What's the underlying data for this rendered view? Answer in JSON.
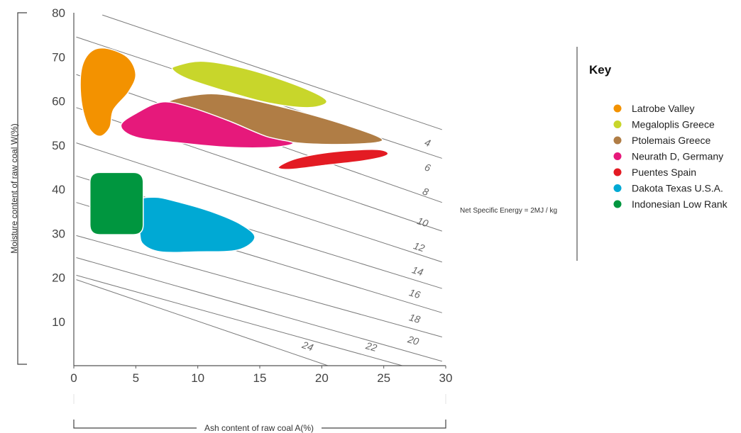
{
  "chart_data": {
    "type": "area",
    "xlabel": "Ash content of raw coal A(%)",
    "ylabel": "Moisture content of raw coal W(%)",
    "xlim": [
      0,
      30
    ],
    "ylim": [
      0,
      80
    ],
    "xticks": [
      0,
      5,
      10,
      15,
      20,
      25,
      30
    ],
    "yticks": [
      10,
      20,
      30,
      40,
      50,
      60,
      70,
      80
    ],
    "grid": false,
    "legend_title": "Key",
    "legend_position": "right",
    "annotation": "Net Specific Energy = 2MJ / kg",
    "isolines": [
      {
        "label": "4",
        "p1": [
          2.3,
          79.5
        ],
        "p2": [
          29.7,
          53.5
        ]
      },
      {
        "label": "6",
        "p1": [
          0.2,
          74.5
        ],
        "p2": [
          29.7,
          47.0
        ]
      },
      {
        "label": "8",
        "p1": [
          0.2,
          66.0
        ],
        "p2": [
          29.7,
          37.0
        ]
      },
      {
        "label": "10",
        "p1": [
          0.2,
          58.5
        ],
        "p2": [
          29.7,
          30.5
        ]
      },
      {
        "label": "12",
        "p1": [
          0.2,
          50.5
        ],
        "p2": [
          29.7,
          23.5
        ]
      },
      {
        "label": "14",
        "p1": [
          0.2,
          43.0
        ],
        "p2": [
          29.7,
          17.5
        ]
      },
      {
        "label": "16",
        "p1": [
          0.2,
          37.0
        ],
        "p2": [
          29.7,
          12.0
        ]
      },
      {
        "label": "18",
        "p1": [
          0.2,
          29.5
        ],
        "p2": [
          29.7,
          6.5
        ]
      },
      {
        "label": "20",
        "p1": [
          0.2,
          24.5
        ],
        "p2": [
          29.7,
          1.0
        ]
      },
      {
        "label": "22",
        "p1": [
          0.2,
          20.5
        ],
        "p2": [
          26.5,
          0.0
        ]
      },
      {
        "label": "24",
        "p1": [
          0.2,
          19.5
        ],
        "p2": [
          20.5,
          0.0
        ]
      }
    ],
    "series": [
      {
        "name": "Latrobe Valley",
        "color": "#f39200",
        "points": [
          [
            0.6,
            67
          ],
          [
            1.3,
            71
          ],
          [
            2.5,
            72
          ],
          [
            4.3,
            70
          ],
          [
            5.0,
            66
          ],
          [
            4.4,
            62
          ],
          [
            3.2,
            58
          ],
          [
            2.9,
            54
          ],
          [
            2.1,
            52
          ],
          [
            1.2,
            54
          ],
          [
            0.6,
            60
          ]
        ]
      },
      {
        "name": "Megaloplis Greece",
        "color": "#c8d62b",
        "points": [
          [
            8.3,
            68
          ],
          [
            10.5,
            69
          ],
          [
            14.3,
            67
          ],
          [
            18.5,
            63
          ],
          [
            20.4,
            60
          ],
          [
            19.0,
            58.5
          ],
          [
            15.8,
            59.5
          ],
          [
            12.5,
            62
          ],
          [
            9.2,
            65
          ],
          [
            8.0,
            67
          ]
        ]
      },
      {
        "name": "Ptolemais Greece",
        "color": "#b07d45",
        "points": [
          [
            7.5,
            59.5
          ],
          [
            9.0,
            61
          ],
          [
            12.0,
            61.5
          ],
          [
            17.0,
            58.5
          ],
          [
            22.0,
            54.5
          ],
          [
            24.9,
            51.2
          ],
          [
            22.5,
            50.2
          ],
          [
            18.0,
            50.5
          ],
          [
            14.5,
            52.5
          ],
          [
            10.5,
            55
          ],
          [
            8.2,
            57.5
          ]
        ]
      },
      {
        "name": "Neurath D, Germany",
        "color": "#e6197b",
        "points": [
          [
            3.8,
            54.5
          ],
          [
            5.2,
            57.5
          ],
          [
            7.2,
            59.8
          ],
          [
            9.5,
            58.5
          ],
          [
            12.5,
            55.5
          ],
          [
            15.5,
            52
          ],
          [
            17.7,
            50.5
          ],
          [
            16.0,
            49.5
          ],
          [
            12.5,
            49.5
          ],
          [
            8.5,
            50.5
          ],
          [
            5.0,
            51.8
          ]
        ]
      },
      {
        "name": "Puentes Spain",
        "color": "#e31b23",
        "points": [
          [
            16.5,
            45
          ],
          [
            18.0,
            47
          ],
          [
            21.0,
            48.5
          ],
          [
            24.5,
            49
          ],
          [
            25.3,
            47.8
          ],
          [
            23.5,
            46.5
          ],
          [
            20.5,
            45.5
          ],
          [
            17.5,
            44.5
          ]
        ]
      },
      {
        "name": "Dakota Texas U.S.A.",
        "color": "#00a9d4",
        "points": [
          [
            5.1,
            37
          ],
          [
            6.5,
            38.2
          ],
          [
            8.3,
            37.2
          ],
          [
            11.0,
            35
          ],
          [
            13.5,
            32
          ],
          [
            14.6,
            29
          ],
          [
            13.2,
            26.2
          ],
          [
            10.0,
            25.8
          ],
          [
            7.0,
            25.8
          ],
          [
            5.6,
            27.5
          ],
          [
            5.3,
            30.5
          ]
        ]
      },
      {
        "name": "Indonesian Low Rank",
        "color": "#00963f",
        "points": [
          [
            1.3,
            43.8
          ],
          [
            5.6,
            43.8
          ],
          [
            5.6,
            29.7
          ],
          [
            1.3,
            29.7
          ]
        ]
      }
    ]
  }
}
